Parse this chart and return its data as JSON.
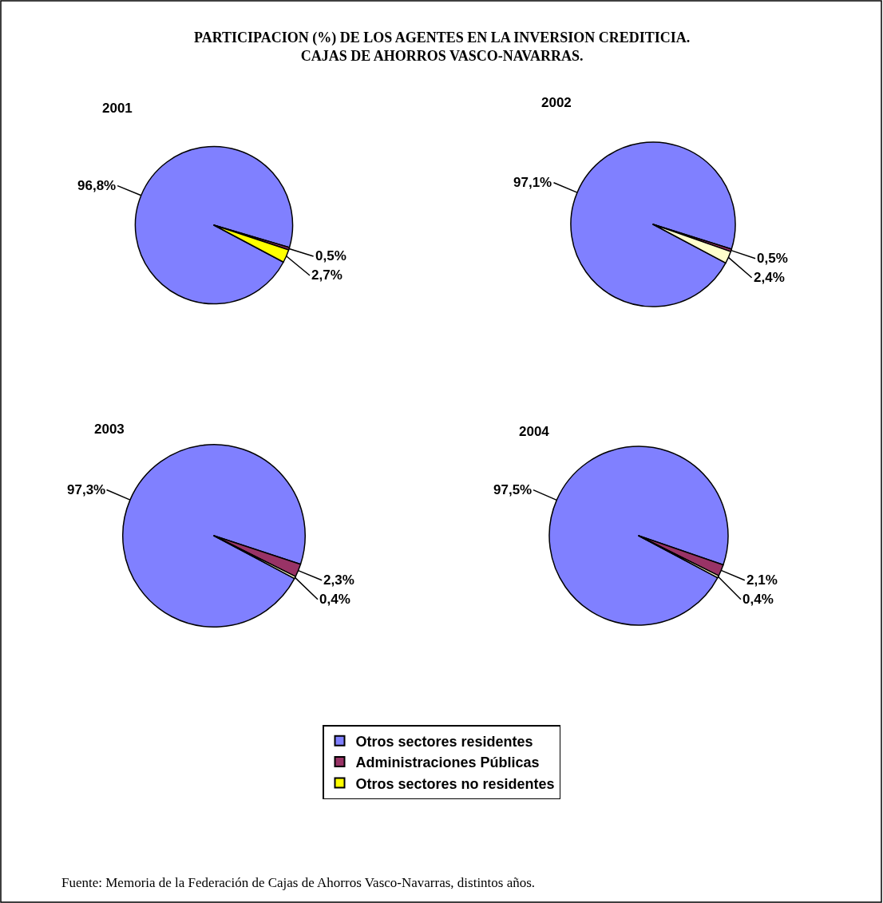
{
  "chart_data": [
    {
      "type": "other",
      "title": "PARTICIPACION (%) DE LOS AGENTES EN LA INVERSION CREDITICIA.\nCAJAS DE AHORROS VASCO-NAVARRAS.",
      "annotations": [
        "Fuente: Memoria de la Federación de Cajas de Ahorros Vasco-Navarras, distintos años."
      ]
    },
    {
      "type": "pie",
      "title": "2001",
      "categories": [
        "Otros sectores residentes",
        "Administraciones Públicas",
        "Otros sectores no residentes"
      ],
      "values": [
        96.8,
        0.5,
        2.7
      ],
      "value_labels": [
        "96,8%",
        "0,5%",
        "2,7%"
      ],
      "colors": [
        "#8080ff",
        "#993366",
        "#ffff00"
      ],
      "legend": "bottom"
    },
    {
      "type": "pie",
      "title": "2002",
      "categories": [
        null,
        null,
        null
      ],
      "values": [
        97.1,
        0.5,
        2.4
      ],
      "value_labels": [
        "97,1%",
        "0,5%",
        "2,4%"
      ],
      "colors": [
        "#8080ff",
        "#993366",
        "#ffffcc"
      ]
    },
    {
      "type": "pie",
      "title": "2003",
      "categories": [
        null,
        null,
        null
      ],
      "values": [
        97.3,
        2.3,
        0.4
      ],
      "value_labels": [
        "97,3%",
        "2,3%",
        "0,4%"
      ],
      "colors": [
        "#8080ff",
        "#993366",
        "#ffffcc"
      ]
    },
    {
      "type": "pie",
      "title": "2004",
      "categories": [
        null,
        null,
        null
      ],
      "values": [
        97.5,
        2.1,
        0.4
      ],
      "value_labels": [
        "97,5%",
        "2,1%",
        "0,4%"
      ],
      "colors": [
        "#8080ff",
        "#993366",
        "#ffffcc"
      ]
    }
  ]
}
